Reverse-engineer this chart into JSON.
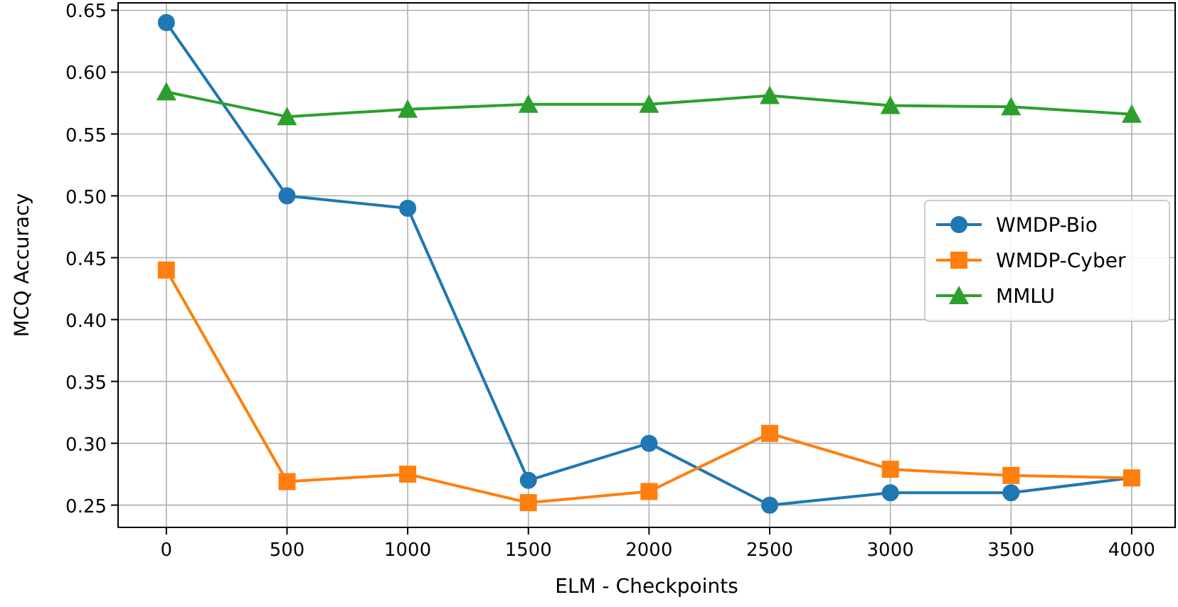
{
  "chart_data": {
    "type": "line",
    "xlabel": "ELM - Checkpoints",
    "ylabel": "MCQ Accuracy",
    "x": [
      0,
      500,
      1000,
      1500,
      2000,
      2500,
      3000,
      3500,
      4000
    ],
    "xlim": [
      -200,
      4180
    ],
    "xticks": [
      0,
      500,
      1000,
      1500,
      2000,
      2500,
      3000,
      3500,
      4000
    ],
    "ylim": [
      0.232,
      0.656
    ],
    "yticks": [
      {
        "value": 0.25,
        "label": "0.25"
      },
      {
        "value": 0.3,
        "label": "0.30"
      },
      {
        "value": 0.35,
        "label": "0.35"
      },
      {
        "value": 0.4,
        "label": "0.40"
      },
      {
        "value": 0.45,
        "label": "0.45"
      },
      {
        "value": 0.5,
        "label": "0.50"
      },
      {
        "value": 0.55,
        "label": "0.55"
      },
      {
        "value": 0.6,
        "label": "0.60"
      },
      {
        "value": 0.65,
        "label": "0.65"
      }
    ],
    "grid": true,
    "legend": "right",
    "line_style": "solid",
    "series": [
      {
        "name": "WMDP-Bio",
        "color": "#1f77b4",
        "marker": "circle",
        "values": [
          0.64,
          0.5,
          0.49,
          0.27,
          0.3,
          0.25,
          0.26,
          0.26,
          0.272
        ]
      },
      {
        "name": "WMDP-Cyber",
        "color": "#ff7f0e",
        "marker": "square",
        "values": [
          0.44,
          0.269,
          0.275,
          0.252,
          0.261,
          0.308,
          0.279,
          0.274,
          0.272
        ]
      },
      {
        "name": "MMLU",
        "color": "#2ca02c",
        "marker": "triangle",
        "values": [
          0.584,
          0.564,
          0.57,
          0.574,
          0.574,
          0.581,
          0.573,
          0.572,
          0.566
        ]
      }
    ]
  }
}
